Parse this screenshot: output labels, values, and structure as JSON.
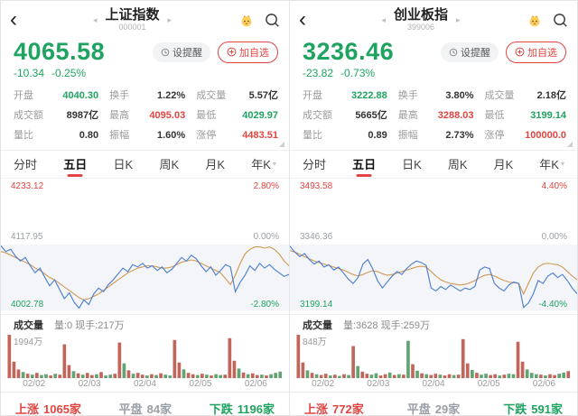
{
  "accent": {
    "red": "#e24441",
    "green": "#1fa360",
    "blue_line": "#4d7fd0",
    "orange_line": "#d19a55"
  },
  "panels": [
    {
      "nav": {
        "back": "‹",
        "title": "上证指数",
        "code": "000001"
      },
      "price": {
        "value": "4065.58",
        "change": "-10.34",
        "change_pct": "-0.25%"
      },
      "actions": {
        "alert": "设提醒",
        "add": "加自选"
      },
      "stats": [
        {
          "label": "开盘",
          "value": "4040.30",
          "color": "green"
        },
        {
          "label": "换手",
          "value": "1.22%",
          "color": "black"
        },
        {
          "label": "成交量",
          "value": "5.57亿",
          "color": "black"
        },
        {
          "label": "成交额",
          "value": "8987亿",
          "color": "black"
        },
        {
          "label": "最高",
          "value": "4095.03",
          "color": "red"
        },
        {
          "label": "最低",
          "value": "4029.97",
          "color": "green"
        },
        {
          "label": "量比",
          "value": "0.80",
          "color": "black"
        },
        {
          "label": "振幅",
          "value": "1.60%",
          "color": "black"
        },
        {
          "label": "涨停",
          "value": "4483.51",
          "color": "red"
        }
      ],
      "tabs": [
        "分时",
        "五日",
        "日K",
        "周K",
        "月K",
        "年K"
      ],
      "active_tab": "五日",
      "axis": {
        "top_price": "4233.12",
        "top_pct": "2.80%",
        "mid_price": "4117.95",
        "mid_pct": "0.00%",
        "bottom_price": "4002.78",
        "bottom_pct": "-2.80%"
      },
      "vol": {
        "label": "成交量",
        "detail": "量:0 现手:217万",
        "max": "1994万"
      },
      "dates": [
        "02/02",
        "02/03",
        "02/04",
        "02/05",
        "02/06"
      ],
      "breadth": {
        "up_label": "上涨",
        "up_count": "1065家",
        "flat_label": "平盘",
        "flat_count": "84家",
        "down_label": "下跌",
        "down_count": "1196家"
      }
    },
    {
      "nav": {
        "back": "‹",
        "title": "创业板指",
        "code": "399006"
      },
      "price": {
        "value": "3236.46",
        "change": "-23.82",
        "change_pct": "-0.73%"
      },
      "actions": {
        "alert": "设提醒",
        "add": "加自选"
      },
      "stats": [
        {
          "label": "开盘",
          "value": "3222.88",
          "color": "green"
        },
        {
          "label": "换手",
          "value": "3.80%",
          "color": "black"
        },
        {
          "label": "成交量",
          "value": "2.18亿",
          "color": "black"
        },
        {
          "label": "成交额",
          "value": "5665亿",
          "color": "black"
        },
        {
          "label": "最高",
          "value": "3288.03",
          "color": "red"
        },
        {
          "label": "最低",
          "value": "3199.14",
          "color": "green"
        },
        {
          "label": "量比",
          "value": "0.89",
          "color": "black"
        },
        {
          "label": "振幅",
          "value": "2.73%",
          "color": "black"
        },
        {
          "label": "涨停",
          "value": "100000.0",
          "color": "red"
        }
      ],
      "tabs": [
        "分时",
        "五日",
        "日K",
        "周K",
        "月K",
        "年K"
      ],
      "active_tab": "五日",
      "axis": {
        "top_price": "3493.58",
        "top_pct": "4.40%",
        "mid_price": "3346.36",
        "mid_pct": "0.00%",
        "bottom_price": "3199.14",
        "bottom_pct": "-4.40%"
      },
      "vol": {
        "label": "成交量",
        "detail": "量:3628 现手:259万",
        "max": "848万"
      },
      "dates": [
        "02/02",
        "02/03",
        "02/04",
        "02/05",
        "02/06"
      ],
      "breadth": {
        "up_label": "上涨",
        "up_count": "772家",
        "flat_label": "平盘",
        "flat_count": "29家",
        "down_label": "下跌",
        "down_count": "591家"
      }
    }
  ],
  "chart_data": [
    {
      "type": "line",
      "title": "上证指数 五日分时",
      "x_dates": [
        "02/02",
        "02/03",
        "02/04",
        "02/05",
        "02/06"
      ],
      "prev_close": 4117.95,
      "range_pct": 2.8,
      "ylim_price": [
        4002.78,
        4233.12
      ],
      "legend_position": "none",
      "grid": false,
      "series": [
        {
          "name": "price_pct_vs_5d_close",
          "values": [
            -0.05,
            -0.3,
            -0.2,
            -0.5,
            -0.7,
            -0.55,
            -0.9,
            -1.2,
            -1.0,
            -1.4,
            -1.75,
            -1.5,
            -1.9,
            -2.3,
            -2.05,
            -2.45,
            -2.7,
            -2.35,
            -2.55,
            -2.1,
            -1.85,
            -2.0,
            -1.7,
            -1.5,
            -1.25,
            -1.0,
            -1.15,
            -0.85,
            -0.95,
            -0.8,
            -1.0,
            -0.9,
            -1.1,
            -0.95,
            -1.2,
            -1.05,
            -0.8,
            -0.55,
            -0.7,
            -0.45,
            -0.6,
            -0.9,
            -1.15,
            -0.95,
            -1.3,
            -1.1,
            -0.85,
            -0.95,
            -2.0,
            -1.6,
            -1.3,
            -0.9,
            -1.1,
            -0.8,
            -1.0,
            -0.85,
            -1.05,
            -1.2,
            -1.35,
            -1.27
          ]
        },
        {
          "name": "avg_pct_vs_5d_close",
          "values": [
            -0.3,
            -0.35,
            -0.45,
            -0.55,
            -0.65,
            -0.75,
            -0.85,
            -1.0,
            -1.1,
            -1.25,
            -1.4,
            -1.5,
            -1.65,
            -1.8,
            -1.95,
            -2.1,
            -2.25,
            -2.35,
            -2.3,
            -2.2,
            -2.1,
            -1.95,
            -1.8,
            -1.65,
            -1.5,
            -1.35,
            -1.2,
            -1.1,
            -1.0,
            -0.95,
            -0.9,
            -0.9,
            -0.95,
            -1.0,
            -1.0,
            -0.95,
            -0.85,
            -0.75,
            -0.7,
            -0.65,
            -0.7,
            -0.8,
            -0.9,
            -1.0,
            -1.1,
            -1.2,
            -1.45,
            -1.7,
            -1.3,
            -0.8,
            -0.4,
            -0.2,
            -0.1,
            -0.1,
            -0.15,
            -0.1,
            -0.2,
            -0.4,
            -0.7,
            -0.9
          ]
        }
      ],
      "volume": {
        "max_label": "1994万",
        "values": [
          100,
          38,
          20,
          14,
          10,
          8,
          12,
          7,
          9,
          6,
          10,
          8,
          78,
          30,
          16,
          11,
          8,
          12,
          7,
          9,
          14,
          6,
          8,
          10,
          82,
          34,
          18,
          10,
          12,
          8,
          6,
          9,
          7,
          11,
          8,
          6,
          88,
          36,
          20,
          12,
          9,
          7,
          10,
          8,
          6,
          9,
          7,
          8,
          92,
          40,
          22,
          13,
          9,
          11,
          7,
          8,
          6,
          9,
          12,
          15
        ],
        "colors": "rrrgrgrggrgrrrgrgrrgrggrrgrgrrgrgrggrrgrrgrgrggrrrgrgrrgrggg"
      }
    },
    {
      "type": "line",
      "title": "创业板指 五日分时",
      "x_dates": [
        "02/02",
        "02/03",
        "02/04",
        "02/05",
        "02/06"
      ],
      "prev_close": 3346.36,
      "range_pct": 4.4,
      "ylim_price": [
        3199.14,
        3493.58
      ],
      "legend_position": "none",
      "grid": false,
      "series": [
        {
          "name": "price_pct_vs_5d_close",
          "values": [
            -0.1,
            -0.5,
            -0.8,
            -0.6,
            -1.0,
            -1.3,
            -1.1,
            -1.5,
            -1.35,
            -1.7,
            -1.5,
            -1.9,
            -2.3,
            -2.6,
            -2.2,
            -1.3,
            -1.0,
            -1.6,
            -2.4,
            -2.9,
            -2.5,
            -2.1,
            -1.8,
            -2.0,
            -1.6,
            -1.3,
            -1.1,
            -1.2,
            -1.4,
            -2.9,
            -3.1,
            -2.8,
            -3.0,
            -2.7,
            -2.9,
            -3.1,
            -2.9,
            -3.0,
            -2.8,
            -1.7,
            -1.5,
            -1.6,
            -2.6,
            -2.9,
            -3.1,
            -2.7,
            -2.5,
            -2.6,
            -4.2,
            -3.9,
            -3.3,
            -2.4,
            -2.6,
            -2.1,
            -1.9,
            -2.2,
            -2.0,
            -2.4,
            -2.9,
            -3.28
          ]
        },
        {
          "name": "avg_pct_vs_5d_close",
          "values": [
            -0.4,
            -0.5,
            -0.65,
            -0.8,
            -0.95,
            -1.1,
            -1.2,
            -1.3,
            -1.4,
            -1.5,
            -1.6,
            -1.7,
            -1.85,
            -2.0,
            -2.1,
            -2.0,
            -1.85,
            -1.75,
            -1.8,
            -1.95,
            -2.05,
            -2.0,
            -1.9,
            -1.8,
            -1.7,
            -1.6,
            -1.5,
            -1.45,
            -1.5,
            -1.8,
            -2.1,
            -2.35,
            -2.5,
            -2.6,
            -2.65,
            -2.7,
            -2.65,
            -2.55,
            -2.4,
            -2.2,
            -2.05,
            -2.0,
            -2.1,
            -2.25,
            -2.4,
            -2.5,
            -2.55,
            -2.6,
            -3.3,
            -2.6,
            -1.9,
            -1.5,
            -1.3,
            -1.25,
            -1.3,
            -1.35,
            -1.5,
            -1.8,
            -2.1,
            -2.35
          ]
        }
      ],
      "volume": {
        "max_label": "848万",
        "values": [
          100,
          36,
          18,
          12,
          9,
          7,
          10,
          6,
          8,
          5,
          9,
          7,
          74,
          28,
          15,
          10,
          8,
          11,
          6,
          9,
          13,
          7,
          9,
          8,
          86,
          32,
          17,
          11,
          9,
          7,
          10,
          8,
          6,
          9,
          7,
          8,
          90,
          34,
          19,
          12,
          8,
          10,
          7,
          9,
          6,
          8,
          10,
          9,
          84,
          38,
          20,
          12,
          9,
          8,
          6,
          9,
          7,
          10,
          13,
          16
        ],
        "colors": "rrgrgrrgrgrgrgrrggrrgrgrgrgrgrrgrrgrrrgrggrrgrggrrgggrgrrggr"
      }
    }
  ]
}
